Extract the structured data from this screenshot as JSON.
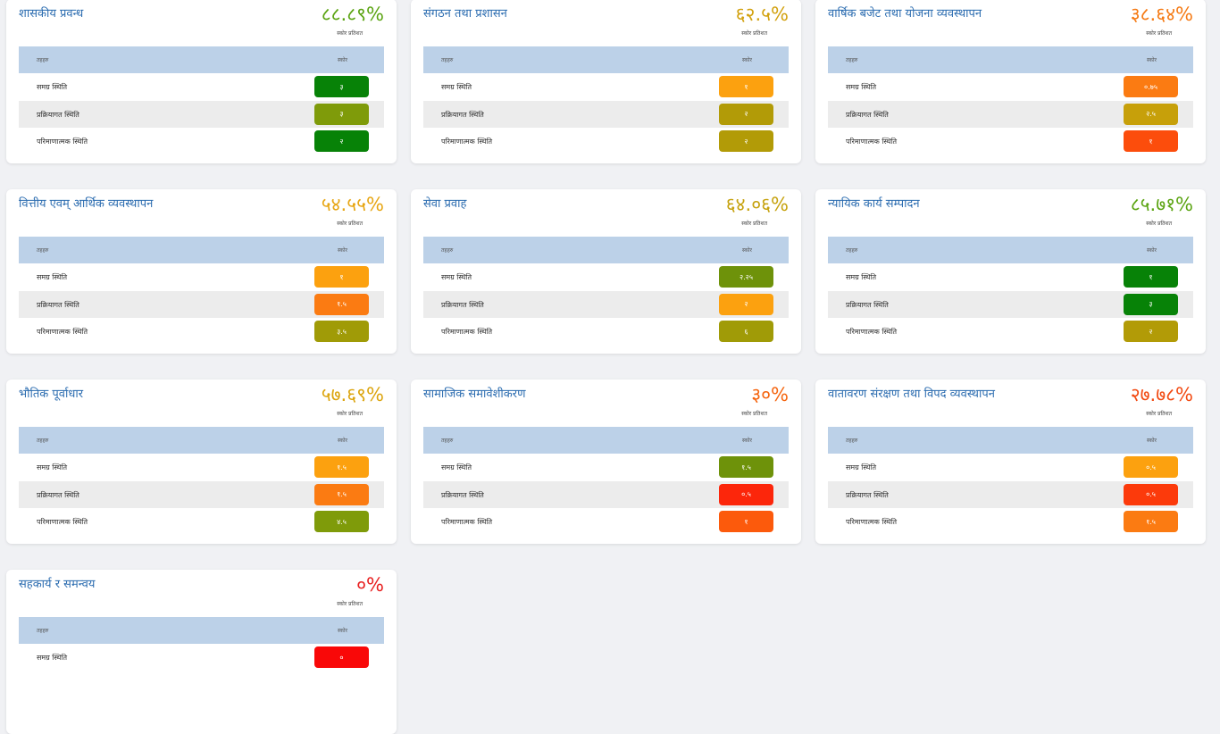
{
  "table_headers": {
    "indicator": "तहहरु",
    "score": "स्कोर"
  },
  "score_caption": "स्कोर प्रतिशत",
  "cards": [
    {
      "title": "शासकीय प्रवन्ध",
      "score": "८८.८९%",
      "score_color": "#5ba412",
      "rows": [
        {
          "label": "समग्र स्थिति",
          "value": "३",
          "color": "#078207"
        },
        {
          "label": "प्रक्रियागत स्थिति",
          "value": "३",
          "color": "#7f9b0a"
        },
        {
          "label": "परिमाणात्मक स्थिति",
          "value": "२",
          "color": "#078207"
        }
      ]
    },
    {
      "title": "संगठन तथा प्रशासन",
      "score": "६२.५%",
      "score_color": "#d2a10e",
      "rows": [
        {
          "label": "समग्र स्थिति",
          "value": "१",
          "color": "#fca10f"
        },
        {
          "label": "प्रक्रियागत स्थिति",
          "value": "२",
          "color": "#b29b07"
        },
        {
          "label": "परिमाणात्मक स्थिति",
          "value": "२",
          "color": "#b29b07"
        }
      ]
    },
    {
      "title": "वार्षिक बजेट तथा योजना व्यवस्थापन",
      "score": "३८.६४%",
      "score_color": "#f57a14",
      "rows": [
        {
          "label": "समग्र स्थिति",
          "value": "०.७५",
          "color": "#fb7b12"
        },
        {
          "label": "प्रक्रियागत स्थिति",
          "value": "२.५",
          "color": "#c7a00a"
        },
        {
          "label": "परिमाणात्मक स्थिति",
          "value": "१",
          "color": "#fc4d0c"
        }
      ]
    },
    {
      "title": "वित्तीय एवम् आर्थिक व्यवस्थापन",
      "score": "५४.५५%",
      "score_color": "#e7a614",
      "rows": [
        {
          "label": "समग्र स्थिति",
          "value": "१",
          "color": "#fca10f"
        },
        {
          "label": "प्रक्रियागत स्थिति",
          "value": "१.५",
          "color": "#fb7b12"
        },
        {
          "label": "परिमाणात्मक स्थिति",
          "value": "३.५",
          "color": "#a09b07"
        }
      ]
    },
    {
      "title": "सेवा प्रवाह",
      "score": "६४.०६%",
      "score_color": "#c6a20e",
      "rows": [
        {
          "label": "समग्र स्थिति",
          "value": "२.२५",
          "color": "#6e920a"
        },
        {
          "label": "प्रक्रियागत स्थिति",
          "value": "२",
          "color": "#fca10f"
        },
        {
          "label": "परिमाणात्मक स्थिति",
          "value": "६",
          "color": "#a09b07"
        }
      ]
    },
    {
      "title": "न्यायिक कार्य सम्पादन",
      "score": "८५.७१%",
      "score_color": "#5ba412",
      "rows": [
        {
          "label": "समग्र स्थिति",
          "value": "१",
          "color": "#078207"
        },
        {
          "label": "प्रक्रियागत स्थिति",
          "value": "३",
          "color": "#078207"
        },
        {
          "label": "परिमाणात्मक स्थिति",
          "value": "२",
          "color": "#b29b07"
        }
      ]
    },
    {
      "title": "भौतिक पूर्वाधार",
      "score": "५७.६९%",
      "score_color": "#dca50f",
      "rows": [
        {
          "label": "समग्र स्थिति",
          "value": "१.५",
          "color": "#fca10f"
        },
        {
          "label": "प्रक्रियागत स्थिति",
          "value": "१.५",
          "color": "#fb7b12"
        },
        {
          "label": "परिमाणात्मक स्थिति",
          "value": "४.५",
          "color": "#7f9b0a"
        }
      ]
    },
    {
      "title": "सामाजिक समावेशीकरण",
      "score": "३०%",
      "score_color": "#f5650f",
      "rows": [
        {
          "label": "समग्र स्थिति",
          "value": "१.५",
          "color": "#6e920a"
        },
        {
          "label": "प्रक्रियागत स्थिति",
          "value": "०.५",
          "color": "#fc260b"
        },
        {
          "label": "परिमाणात्मक स्थिति",
          "value": "१",
          "color": "#fc5a0c"
        }
      ]
    },
    {
      "title": "वातावरण संरक्षण तथा विपद व्यवस्थापन",
      "score": "२७.७८%",
      "score_color": "#f24a12",
      "rows": [
        {
          "label": "समग्र स्थिति",
          "value": "०.५",
          "color": "#fca10f"
        },
        {
          "label": "प्रक्रियागत स्थिति",
          "value": "०.५",
          "color": "#fc3a0b"
        },
        {
          "label": "परिमाणात्मक स्थिति",
          "value": "१.५",
          "color": "#fb7b12"
        }
      ]
    },
    {
      "title": "सहकार्य र समन्वय",
      "score": "०%",
      "score_color": "#e82020",
      "rows": [
        {
          "label": "समग्र स्थिति",
          "value": "०",
          "color": "#f90808"
        }
      ]
    }
  ]
}
